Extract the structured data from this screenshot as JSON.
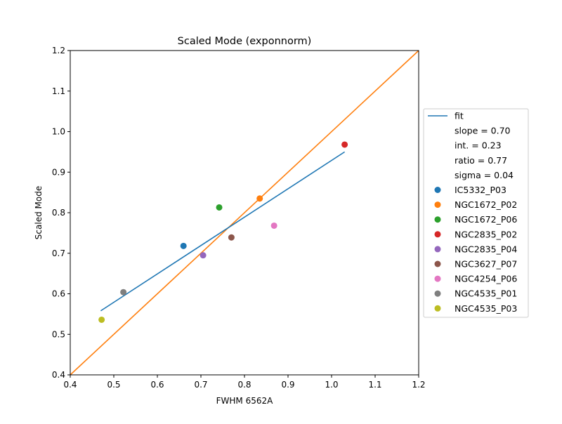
{
  "chart_data": {
    "type": "scatter",
    "title": "Scaled Mode (exponnorm)",
    "xlabel": "FWHM 6562A",
    "ylabel": "Scaled Mode",
    "xlim": [
      0.4,
      1.2
    ],
    "ylim": [
      0.4,
      1.2
    ],
    "xticks": [
      "0.4",
      "0.5",
      "0.6",
      "0.7",
      "0.8",
      "0.9",
      "1.0",
      "1.1",
      "1.2"
    ],
    "yticks": [
      "0.4",
      "0.5",
      "0.6",
      "0.7",
      "0.8",
      "0.9",
      "1.0",
      "1.1",
      "1.2"
    ],
    "grid": false,
    "legend_position": "right",
    "fit_line": {
      "name": "fit",
      "color": "#1f77b4",
      "x": [
        0.47,
        1.03
      ],
      "y": [
        0.558,
        0.95
      ]
    },
    "identity_line": {
      "color": "#ff7f0e",
      "x": [
        0.4,
        1.2
      ],
      "y": [
        0.4,
        1.2
      ]
    },
    "stats": [
      "slope = 0.70",
      "int. = 0.23",
      "ratio = 0.77",
      "sigma = 0.04"
    ],
    "series": [
      {
        "name": "IC5332_P03",
        "color": "#1f77b4",
        "x": 0.66,
        "y": 0.718
      },
      {
        "name": "NGC1672_P02",
        "color": "#ff7f0e",
        "x": 0.835,
        "y": 0.835
      },
      {
        "name": "NGC1672_P06",
        "color": "#2ca02c",
        "x": 0.742,
        "y": 0.813
      },
      {
        "name": "NGC2835_P02",
        "color": "#d62728",
        "x": 1.03,
        "y": 0.968
      },
      {
        "name": "NGC2835_P04",
        "color": "#9467bd",
        "x": 0.705,
        "y": 0.695
      },
      {
        "name": "NGC3627_P07",
        "color": "#8c564b",
        "x": 0.77,
        "y": 0.739
      },
      {
        "name": "NGC4254_P06",
        "color": "#e377c2",
        "x": 0.868,
        "y": 0.768
      },
      {
        "name": "NGC4535_P01",
        "color": "#7f7f7f",
        "x": 0.522,
        "y": 0.604
      },
      {
        "name": "NGC4535_P03",
        "color": "#bcbd22",
        "x": 0.472,
        "y": 0.536
      }
    ]
  }
}
